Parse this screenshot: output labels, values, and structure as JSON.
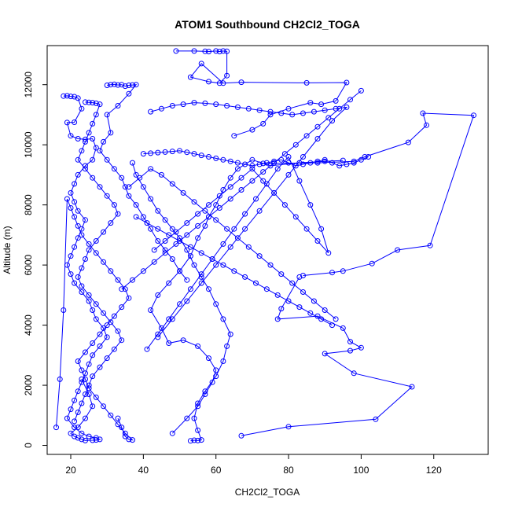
{
  "chart_data": {
    "type": "scatter",
    "title": "ATOM1 Southbound CH2Cl2_TOGA",
    "xlabel": "CH2Cl2_TOGA",
    "ylabel": "Altitude (m)",
    "xlim": [
      13.5,
      135
    ],
    "ylim": [
      -300,
      13300
    ],
    "x_ticks": [
      20,
      40,
      60,
      80,
      100,
      120
    ],
    "y_ticks": [
      0,
      2000,
      4000,
      6000,
      8000,
      10000,
      12000
    ],
    "grid": false,
    "legend": "none",
    "color": "#0000ff",
    "marker": "open-circle",
    "connected": true,
    "series": [
      {
        "x": [
          67,
          80,
          104,
          114,
          98,
          90,
          97,
          100,
          97,
          95,
          88,
          77,
          78,
          83
        ],
        "y": [
          320,
          620,
          870,
          1950,
          2400,
          3050,
          3150,
          3250,
          3450,
          3900,
          4300,
          4200,
          4550,
          5600
        ]
      },
      {
        "x": [
          84,
          92,
          95,
          103,
          110,
          119,
          131,
          117,
          118,
          113,
          101,
          98,
          88,
          73
        ],
        "y": [
          5650,
          5750,
          5800,
          6050,
          6500,
          6650,
          10980,
          11050,
          10650,
          10080,
          9600,
          9450,
          9400,
          9380
        ]
      },
      {
        "x": [
          49,
          54,
          57,
          58,
          60,
          61,
          62,
          63,
          63,
          61,
          58,
          53,
          56,
          62,
          67,
          85,
          96,
          93,
          89,
          86,
          80,
          75,
          73,
          70,
          65
        ],
        "y": [
          13120,
          13120,
          13110,
          13100,
          13120,
          13100,
          13120,
          13110,
          12300,
          12050,
          12100,
          12250,
          12700,
          12050,
          12080,
          12060,
          12070,
          11460,
          11350,
          11400,
          11200,
          11000,
          10700,
          10500,
          10300
        ]
      },
      {
        "x": [
          48,
          52,
          55,
          57,
          59,
          60,
          58,
          55,
          51,
          47,
          45,
          42,
          44,
          47,
          50,
          53,
          55,
          57,
          58,
          60,
          62,
          64,
          66,
          70,
          75,
          83,
          90,
          95
        ],
        "y": [
          400,
          900,
          1300,
          1700,
          2100,
          2500,
          2900,
          3300,
          3500,
          3400,
          3900,
          4500,
          5000,
          5400,
          5800,
          6300,
          6900,
          7300,
          7600,
          8000,
          8500,
          8900,
          9200,
          9500,
          9300,
          9400,
          9450,
          9480
        ]
      },
      {
        "x": [
          53,
          54,
          55,
          56,
          55,
          54,
          55,
          57,
          60,
          62,
          63,
          64,
          62,
          60,
          58,
          56,
          54,
          52,
          50,
          48,
          46,
          44,
          42,
          40,
          38,
          37
        ],
        "y": [
          150,
          170,
          160,
          180,
          500,
          900,
          1400,
          1800,
          2300,
          2800,
          3300,
          3700,
          4200,
          4700,
          5200,
          5600,
          6000,
          6500,
          6900,
          7200,
          7500,
          7800,
          8200,
          8600,
          9000,
          9400
        ]
      },
      {
        "x": [
          30,
          31,
          32,
          33,
          34,
          35,
          36,
          37,
          38,
          36,
          33,
          30,
          31,
          29,
          28,
          30,
          32,
          34,
          35,
          36,
          38,
          40,
          42,
          44,
          46,
          48,
          50,
          52
        ],
        "y": [
          11980,
          12000,
          12010,
          11990,
          12000,
          11950,
          11980,
          11990,
          12000,
          11700,
          11300,
          11000,
          10400,
          10100,
          9800,
          9500,
          9200,
          8900,
          8600,
          8300,
          8000,
          7600,
          7200,
          6800,
          6500,
          6200,
          5800,
          5500
        ]
      },
      {
        "x": [
          18,
          19,
          20,
          21,
          22,
          23,
          21,
          19,
          20,
          22,
          24,
          26,
          27,
          26,
          24,
          22,
          21,
          20,
          21,
          22,
          24,
          23,
          22,
          21,
          20,
          19,
          20,
          21,
          23,
          25,
          26,
          27,
          29,
          30,
          28,
          26,
          25,
          24,
          23,
          22,
          21,
          20,
          19,
          21,
          23,
          25,
          27,
          28,
          27,
          26,
          24,
          23,
          22,
          21,
          20,
          22,
          24,
          26,
          25,
          23
        ],
        "y": [
          11620,
          11630,
          11610,
          11600,
          11550,
          11200,
          10750,
          10740,
          10300,
          10200,
          10180,
          10200,
          9900,
          9500,
          9300,
          9000,
          8700,
          8400,
          8100,
          7800,
          7500,
          7200,
          6900,
          6600,
          6300,
          6000,
          5700,
          5400,
          5100,
          4800,
          4500,
          4200,
          3900,
          3600,
          3300,
          3000,
          2700,
          2400,
          2100,
          1800,
          1500,
          1200,
          900,
          600,
          400,
          300,
          250,
          200,
          180,
          170,
          160,
          200,
          250,
          300,
          400,
          600,
          900,
          1300,
          1700,
          2200
        ]
      },
      {
        "x": [
          24,
          25,
          26,
          27,
          28,
          27,
          26,
          25,
          24,
          23,
          22,
          24,
          26,
          28,
          30,
          32,
          33,
          31,
          29,
          27,
          25,
          24,
          23,
          22,
          23,
          25,
          27,
          29,
          31,
          33,
          34,
          32,
          30,
          28,
          26,
          25,
          24,
          23,
          22,
          21
        ],
        "y": [
          11420,
          11410,
          11400,
          11380,
          11350,
          11000,
          10700,
          10400,
          10100,
          9800,
          9500,
          9200,
          8900,
          8600,
          8300,
          8000,
          7700,
          7400,
          7100,
          6800,
          6500,
          6200,
          5900,
          5600,
          5300,
          5000,
          4700,
          4400,
          4100,
          3800,
          3500,
          3200,
          2900,
          2600,
          2300,
          2000,
          1700,
          1400,
          1100,
          800
        ]
      },
      {
        "x": [
          33,
          34,
          35,
          36,
          37,
          35,
          33,
          31,
          29,
          27,
          25,
          24,
          23,
          22,
          24,
          26,
          28,
          30,
          32,
          34,
          36,
          35,
          33,
          31,
          29,
          27,
          25,
          23,
          22,
          21,
          20,
          19,
          18,
          17,
          16
        ],
        "y": [
          900,
          600,
          300,
          200,
          180,
          400,
          700,
          1000,
          1300,
          1600,
          1900,
          2200,
          2500,
          2800,
          3100,
          3400,
          3700,
          4000,
          4300,
          4600,
          4900,
          5200,
          5500,
          5800,
          6100,
          6400,
          6700,
          7000,
          7300,
          7600,
          7900,
          8200,
          4500,
          2200,
          600
        ]
      },
      {
        "x": [
          40,
          42,
          44,
          46,
          48,
          50,
          52,
          54,
          56,
          58,
          60,
          62,
          64,
          66,
          68,
          70,
          72,
          74,
          76,
          78,
          80,
          82,
          84,
          86,
          88,
          90,
          92,
          94,
          96,
          98,
          100,
          102
        ],
        "y": [
          9700,
          9720,
          9740,
          9760,
          9780,
          9800,
          9750,
          9700,
          9650,
          9600,
          9550,
          9500,
          9450,
          9400,
          9350,
          9300,
          9350,
          9400,
          9450,
          9500,
          9400,
          9300,
          9350,
          9400,
          9450,
          9500,
          9400,
          9300,
          9350,
          9400,
          9500,
          9600
        ]
      },
      {
        "x": [
          42,
          45,
          48,
          51,
          54,
          57,
          60,
          63,
          66,
          69,
          72,
          75,
          78,
          81,
          84,
          87,
          90,
          93,
          96,
          92,
          88,
          84,
          80,
          76,
          72,
          68,
          64,
          60,
          56,
          52,
          48,
          44
        ],
        "y": [
          11100,
          11200,
          11300,
          11350,
          11400,
          11380,
          11350,
          11300,
          11250,
          11200,
          11150,
          11100,
          11050,
          11000,
          11050,
          11100,
          11150,
          11200,
          11250,
          10800,
          10200,
          9600,
          9000,
          8400,
          7800,
          7200,
          6600,
          6000,
          5400,
          4800,
          4200,
          3600
        ]
      },
      {
        "x": [
          43,
          46,
          49,
          52,
          55,
          58,
          61,
          64,
          67,
          70,
          73,
          76,
          79,
          82,
          85,
          88,
          91,
          89,
          86,
          83,
          80,
          77,
          74,
          71,
          68,
          65,
          62,
          59,
          56,
          53,
          50,
          47,
          44,
          41
        ],
        "y": [
          6500,
          6800,
          7100,
          7400,
          7700,
          8000,
          8300,
          8600,
          8900,
          9200,
          8800,
          8400,
          8000,
          7600,
          7200,
          6800,
          6400,
          7200,
          8000,
          8800,
          9600,
          9200,
          8700,
          8200,
          7700,
          7200,
          6700,
          6200,
          5700,
          5200,
          4700,
          4200,
          3700,
          3200
        ]
      },
      {
        "x": [
          34,
          37,
          40,
          43,
          46,
          49,
          52,
          55,
          58,
          61,
          64,
          67,
          70,
          73,
          76,
          79,
          82,
          85,
          88,
          91,
          94,
          97,
          100
        ],
        "y": [
          5200,
          5500,
          5800,
          6100,
          6400,
          6700,
          7000,
          7300,
          7600,
          7900,
          8200,
          8500,
          8800,
          9100,
          9400,
          9700,
          10000,
          10300,
          10600,
          10900,
          11200,
          11500,
          11800
        ]
      },
      {
        "x": [
          36,
          39,
          42,
          45,
          48,
          51,
          54,
          57,
          60,
          63,
          66,
          69,
          72,
          75,
          78,
          81,
          84,
          87,
          90,
          93
        ],
        "y": [
          8600,
          8900,
          9200,
          9000,
          8700,
          8400,
          8100,
          7800,
          7500,
          7200,
          6900,
          6600,
          6300,
          6000,
          5700,
          5400,
          5100,
          4800,
          4500,
          4200
        ]
      },
      {
        "x": [
          38,
          41,
          44,
          47,
          50,
          53,
          56,
          59,
          62,
          65,
          68,
          71,
          74,
          77,
          80,
          83,
          86,
          89,
          92
        ],
        "y": [
          7600,
          7400,
          7200,
          7000,
          6800,
          6600,
          6400,
          6200,
          6000,
          5800,
          5600,
          5400,
          5200,
          5000,
          4800,
          4600,
          4400,
          4200,
          4000
        ]
      }
    ]
  }
}
